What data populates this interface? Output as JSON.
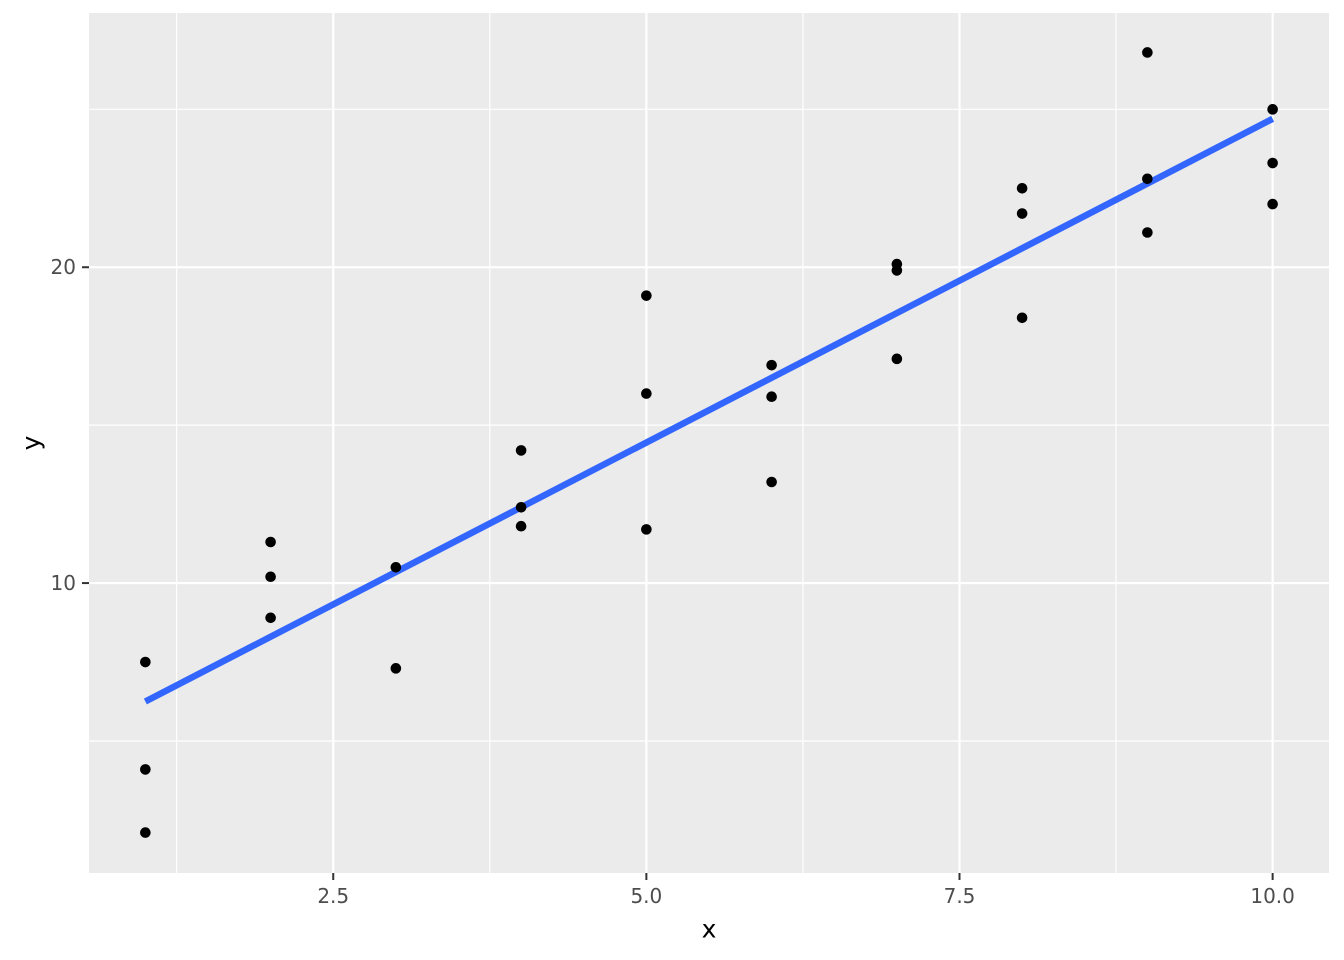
{
  "chart_data": {
    "type": "scatter",
    "title": "",
    "xlabel": "x",
    "ylabel": "y",
    "legend_position": "none",
    "grid": "on",
    "xlim": [
      0.55,
      10.45
    ],
    "ylim": [
      0.82,
      28.05
    ],
    "x_ticks": [
      {
        "value": 2.5,
        "label": "2.5"
      },
      {
        "value": 5.0,
        "label": "5.0"
      },
      {
        "value": 7.5,
        "label": "7.5"
      },
      {
        "value": 10.0,
        "label": "10.0"
      }
    ],
    "y_ticks": [
      {
        "value": 10,
        "label": "10"
      },
      {
        "value": 20,
        "label": "20"
      }
    ],
    "x_minor_gridlines": [
      1.25,
      3.75,
      6.25,
      8.75
    ],
    "y_minor_gridlines": [
      5,
      15,
      25
    ],
    "points": [
      {
        "x": 1,
        "y": 7.5
      },
      {
        "x": 1,
        "y": 4.1
      },
      {
        "x": 1,
        "y": 2.1
      },
      {
        "x": 2,
        "y": 11.3
      },
      {
        "x": 2,
        "y": 10.2
      },
      {
        "x": 2,
        "y": 8.9
      },
      {
        "x": 3,
        "y": 10.5
      },
      {
        "x": 3,
        "y": 7.3
      },
      {
        "x": 4,
        "y": 14.2
      },
      {
        "x": 4,
        "y": 12.4
      },
      {
        "x": 4,
        "y": 11.8
      },
      {
        "x": 5,
        "y": 19.1
      },
      {
        "x": 5,
        "y": 16.0
      },
      {
        "x": 5,
        "y": 11.7
      },
      {
        "x": 6,
        "y": 16.9
      },
      {
        "x": 6,
        "y": 15.9
      },
      {
        "x": 6,
        "y": 13.2
      },
      {
        "x": 7,
        "y": 20.1
      },
      {
        "x": 7,
        "y": 19.9
      },
      {
        "x": 7,
        "y": 17.1
      },
      {
        "x": 8,
        "y": 22.5
      },
      {
        "x": 8,
        "y": 21.7
      },
      {
        "x": 8,
        "y": 18.4
      },
      {
        "x": 9,
        "y": 26.8
      },
      {
        "x": 9,
        "y": 22.8
      },
      {
        "x": 9,
        "y": 21.1
      },
      {
        "x": 10,
        "y": 25.0
      },
      {
        "x": 10,
        "y": 23.3
      },
      {
        "x": 10,
        "y": 22.0
      }
    ],
    "regression_line": {
      "x_start": 1,
      "y_start": 6.25,
      "x_end": 10,
      "y_end": 24.7
    },
    "style": {
      "panel_bg": "#EBEBEB",
      "grid_color": "#FFFFFF",
      "point_color": "#000000",
      "line_color": "#3366FF",
      "tick_mark_color": "#333333",
      "tick_label_color": "#4D4D4D",
      "axis_title_color": "#000000"
    }
  }
}
